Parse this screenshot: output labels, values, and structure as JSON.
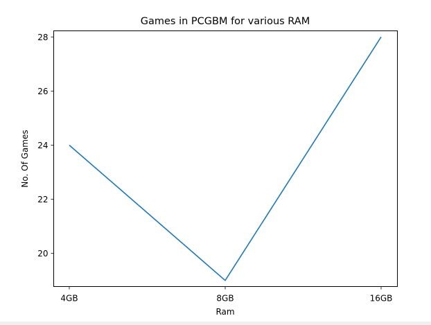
{
  "chart_data": {
    "type": "line",
    "title": "Games in PCGBM for various RAM",
    "xlabel": "Ram",
    "ylabel": "No. Of Games",
    "categories": [
      "4GB",
      "8GB",
      "16GB"
    ],
    "series": [
      {
        "values": [
          24,
          19,
          28
        ]
      }
    ],
    "ylim": [
      18.775,
      28.225
    ],
    "yticks": [
      20,
      22,
      24,
      26,
      28
    ],
    "grid": false,
    "line_color": "#1f77b4"
  }
}
